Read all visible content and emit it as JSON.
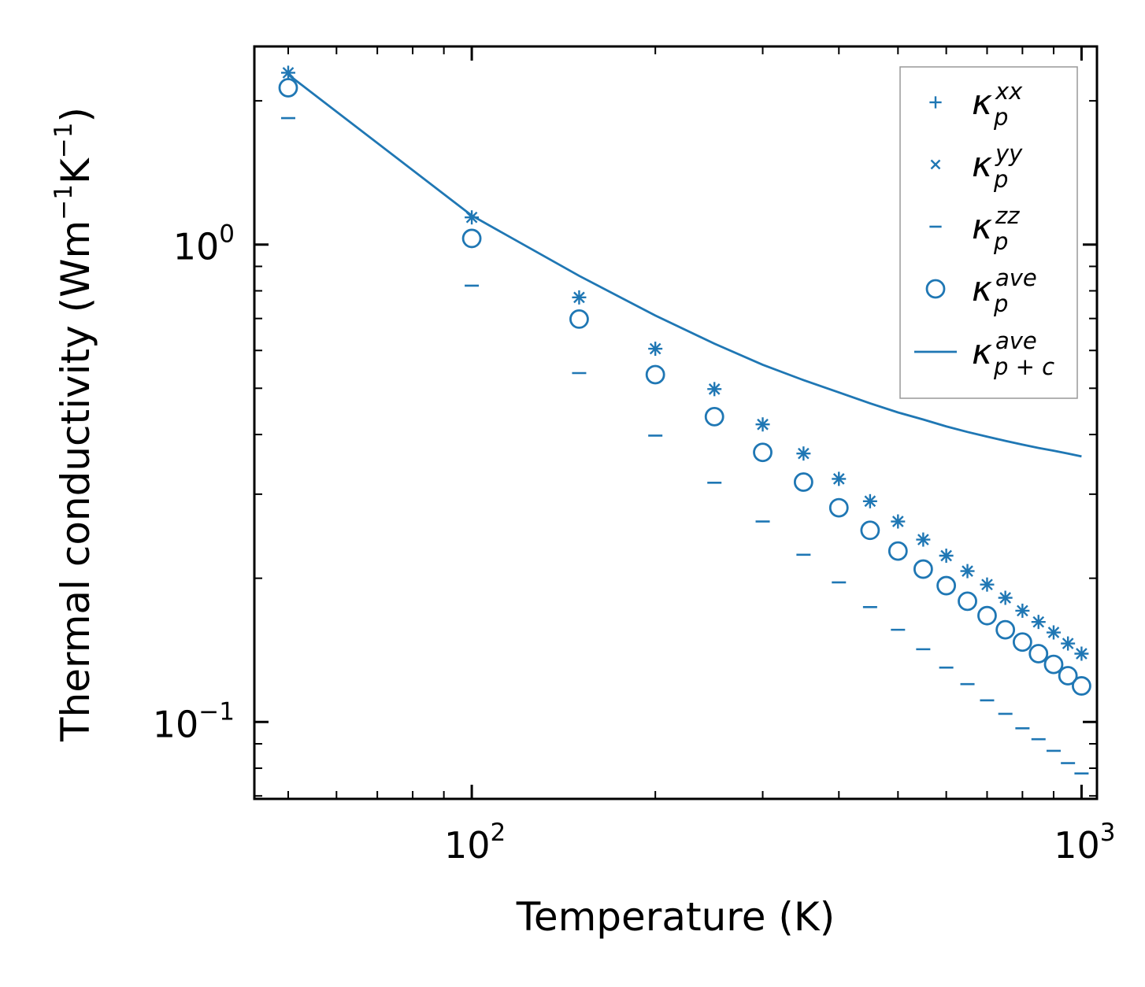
{
  "chart_data": {
    "type": "scatter",
    "xscale": "log",
    "yscale": "log",
    "xlabel": "Temperature (K)",
    "ylabel": "Thermal conductivity (Wm",
    "ylabel_sup1": "−1",
    "ylabel_mid": "K",
    "ylabel_sup2": "−1",
    "ylabel_end": ")",
    "xlim": [
      44,
      1060
    ],
    "ylim": [
      0.069,
      2.6
    ],
    "xticks": [
      {
        "value": 100,
        "base": "10",
        "exp": "2"
      },
      {
        "value": 1000,
        "base": "10",
        "exp": "3"
      }
    ],
    "yticks": [
      {
        "value": 1,
        "base": "10",
        "exp": "0"
      },
      {
        "value": 0.1,
        "base": "10",
        "exp": "−1"
      }
    ],
    "color": "#1f77b4",
    "x": [
      50,
      100,
      150,
      200,
      250,
      300,
      350,
      400,
      450,
      500,
      550,
      600,
      650,
      700,
      750,
      800,
      850,
      900,
      950,
      1000
    ],
    "series": [
      {
        "name": "kappa_p^xx",
        "label_main": "κ",
        "label_sub": "p",
        "label_sup": "xx",
        "marker": "plus",
        "values": [
          2.29,
          1.14,
          0.775,
          0.605,
          0.498,
          0.42,
          0.365,
          0.323,
          0.29,
          0.263,
          0.241,
          0.223,
          0.207,
          0.194,
          0.182,
          0.171,
          0.162,
          0.154,
          0.146,
          0.139
        ]
      },
      {
        "name": "kappa_p^yy",
        "label_main": "κ",
        "label_sub": "p",
        "label_sup": "yy",
        "marker": "x",
        "values": [
          2.29,
          1.14,
          0.775,
          0.605,
          0.498,
          0.42,
          0.365,
          0.323,
          0.29,
          0.263,
          0.241,
          0.223,
          0.207,
          0.194,
          0.182,
          0.171,
          0.162,
          0.154,
          0.146,
          0.139
        ]
      },
      {
        "name": "kappa_p^zz",
        "label_main": "κ",
        "label_sub": "p",
        "label_sup": "zz",
        "marker": "hline",
        "values": [
          1.84,
          0.82,
          0.538,
          0.398,
          0.317,
          0.263,
          0.224,
          0.196,
          0.174,
          0.156,
          0.142,
          0.13,
          0.12,
          0.111,
          0.104,
          0.097,
          0.092,
          0.087,
          0.082,
          0.078
        ]
      },
      {
        "name": "kappa_p^ave",
        "label_main": "κ",
        "label_sub": "p",
        "label_sup": "ave",
        "marker": "circle",
        "values": [
          2.13,
          1.03,
          0.698,
          0.534,
          0.436,
          0.367,
          0.318,
          0.281,
          0.252,
          0.228,
          0.209,
          0.193,
          0.179,
          0.167,
          0.156,
          0.147,
          0.139,
          0.132,
          0.125,
          0.119
        ]
      },
      {
        "name": "kappa_p+c^ave",
        "label_main": "κ",
        "label_sub": "p + c",
        "label_sup": "ave",
        "marker": "line",
        "values": [
          2.27,
          1.15,
          0.86,
          0.71,
          0.62,
          0.56,
          0.52,
          0.49,
          0.465,
          0.445,
          0.43,
          0.416,
          0.405,
          0.396,
          0.388,
          0.381,
          0.375,
          0.37,
          0.365,
          0.36
        ]
      }
    ],
    "legend_position": "upper-right"
  }
}
